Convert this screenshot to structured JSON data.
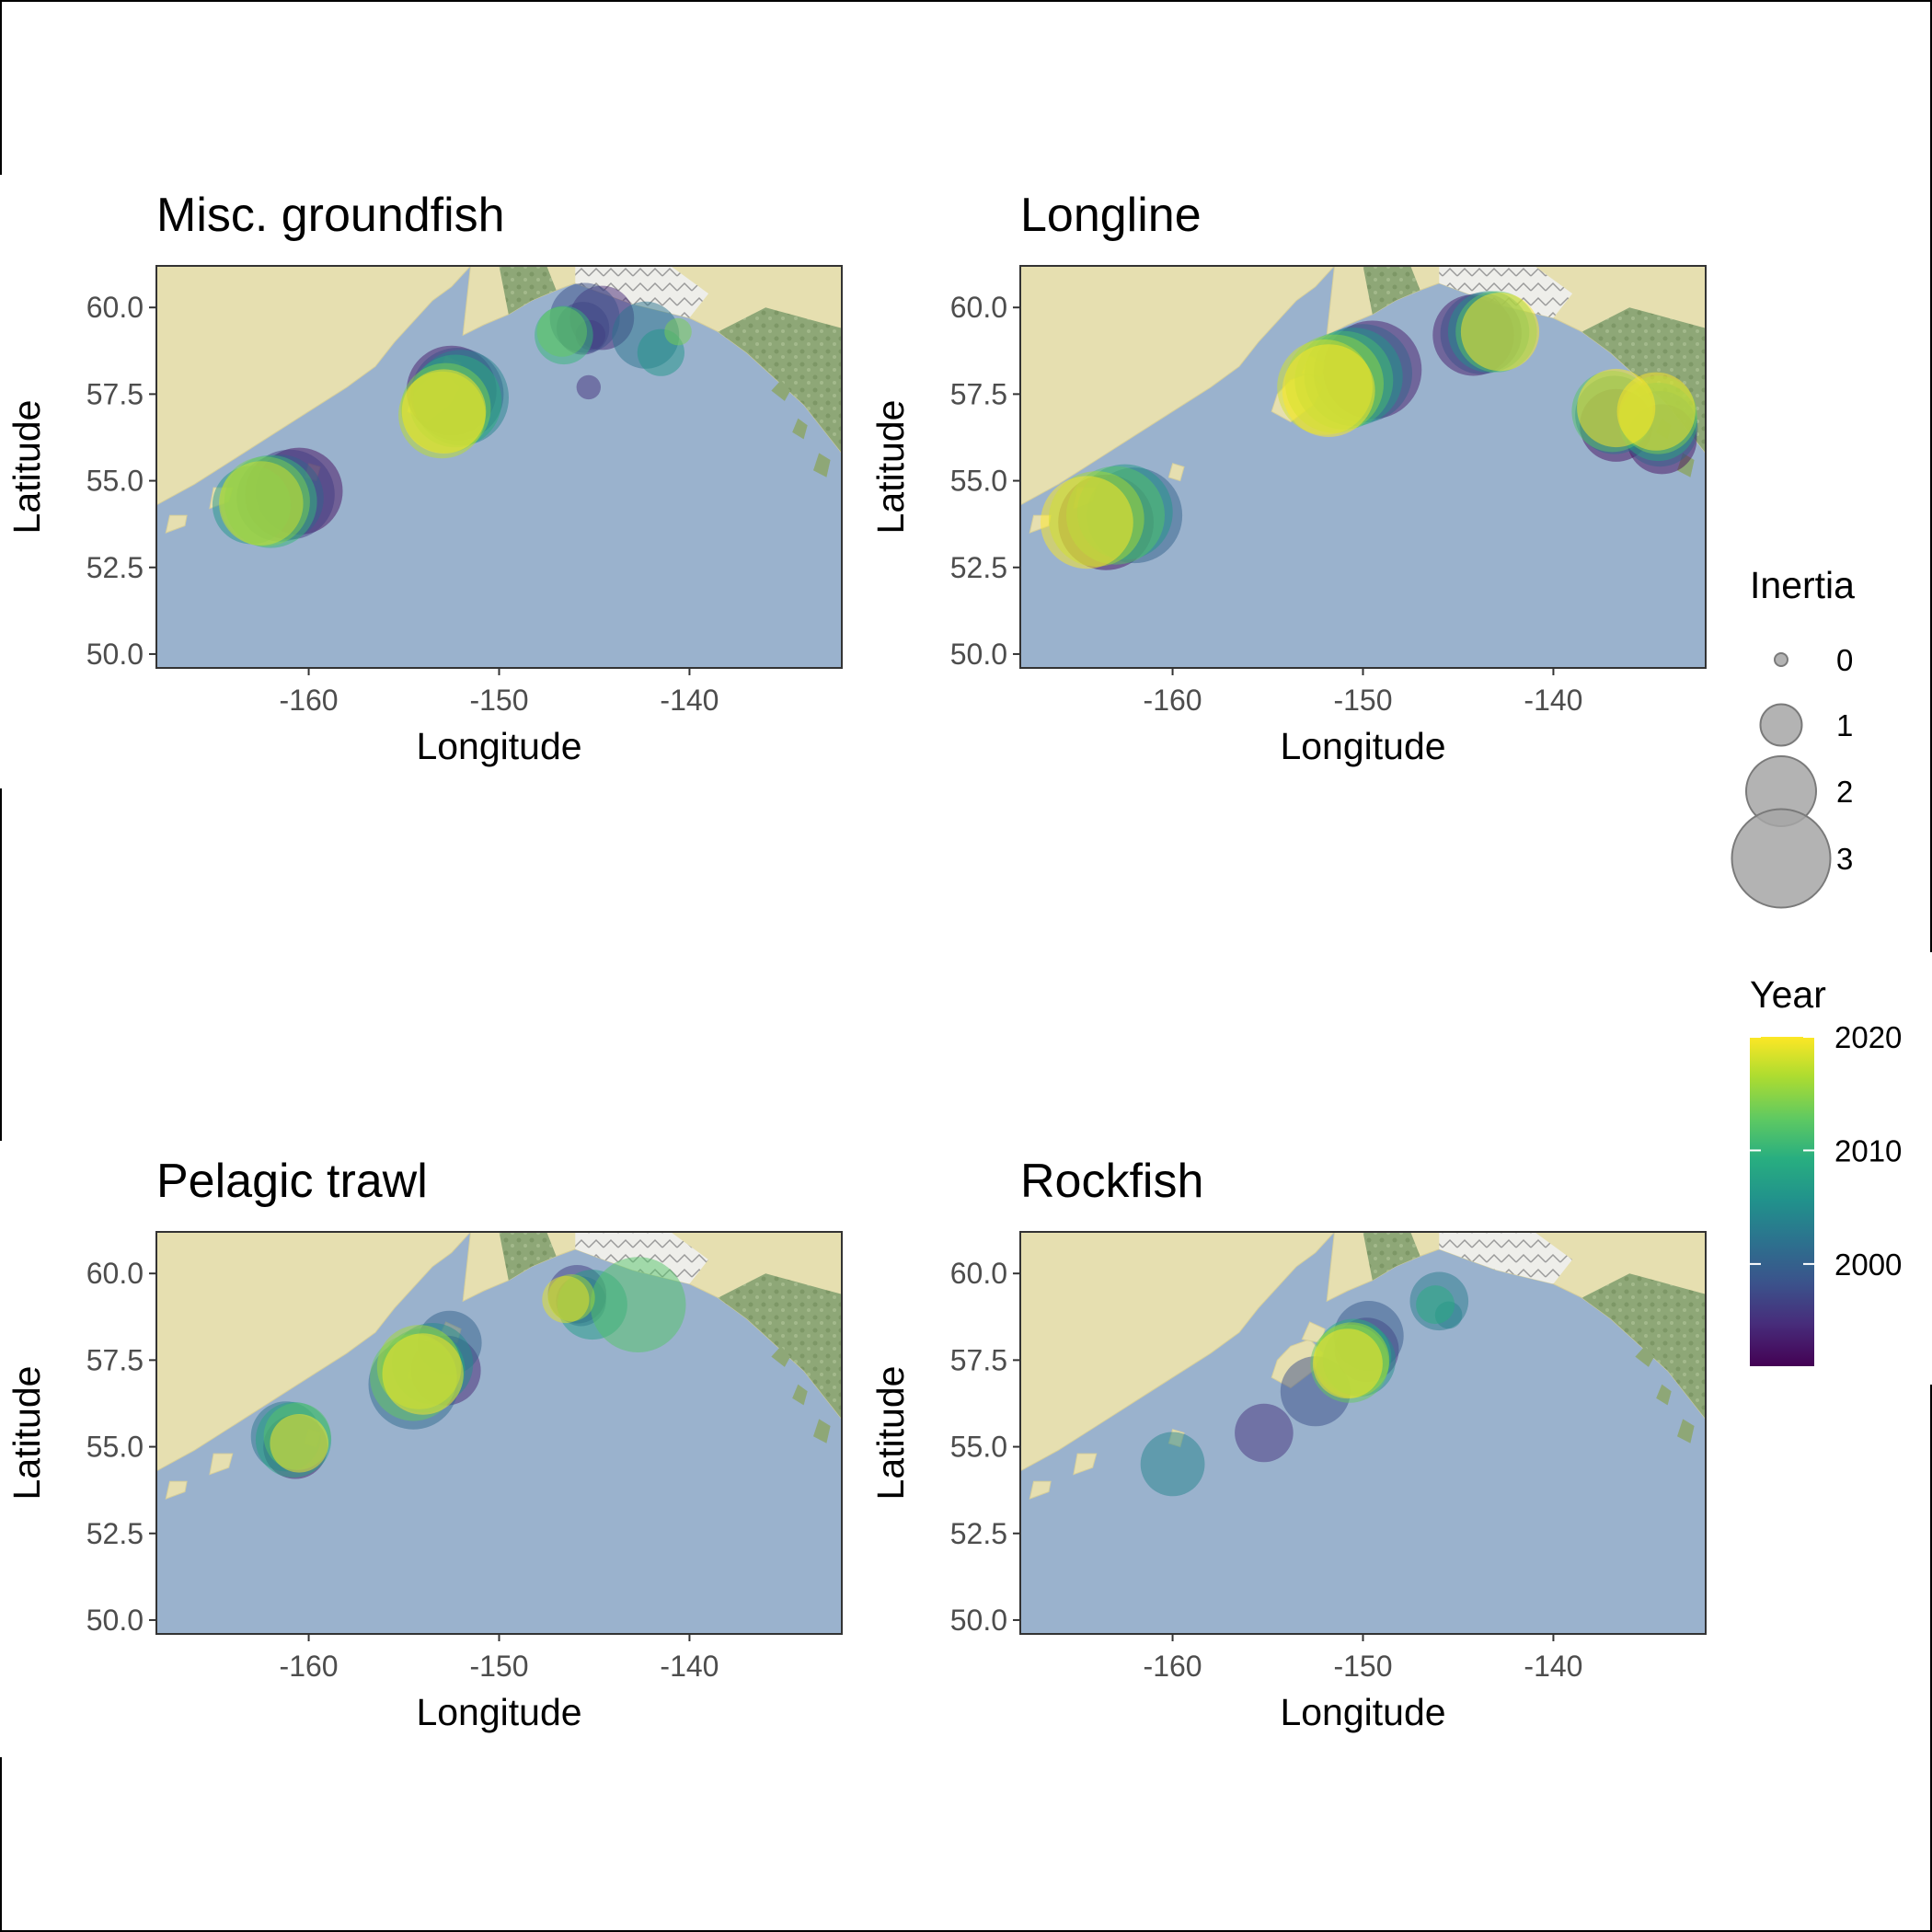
{
  "axes": {
    "xlabel": "Longitude",
    "ylabel": "Latitude",
    "xlim": [
      -168,
      -132
    ],
    "ylim": [
      49.6,
      61.2
    ],
    "xticks": [
      -160,
      -150,
      -140
    ],
    "xtick_labels": [
      "-160",
      "-150",
      "-140"
    ],
    "yticks": [
      50.0,
      52.5,
      55.0,
      57.5,
      60.0
    ],
    "ytick_labels": [
      "50.0",
      "52.5",
      "55.0",
      "57.5",
      "60.0"
    ]
  },
  "legend": {
    "size_title": "Inertia",
    "size_breaks": [
      0,
      1,
      2,
      3
    ],
    "size_labels": [
      "0",
      "1",
      "2",
      "3"
    ],
    "color_title": "Year",
    "color_breaks": [
      2000,
      2010,
      2020
    ],
    "color_labels": [
      "2000",
      "2010",
      "2020"
    ],
    "color_range": [
      1991,
      2020
    ],
    "placement": "right"
  },
  "colors": {
    "ocean": "#9ab2cd",
    "land": "#e6dfb0",
    "forest": "#8ea777",
    "ice": "#f2f2f0",
    "viridis_low": "#440154",
    "viridis_high": "#fde725"
  },
  "chart_data": [
    {
      "type": "scatter",
      "title": "Misc. groundfish",
      "points": [
        {
          "x": -160.5,
          "y": 54.7,
          "year": 1992,
          "inertia": 2.6
        },
        {
          "x": -161.0,
          "y": 54.6,
          "year": 1996,
          "inertia": 2.7
        },
        {
          "x": -161.5,
          "y": 54.5,
          "year": 2000,
          "inertia": 2.6
        },
        {
          "x": -163.0,
          "y": 54.3,
          "year": 2006,
          "inertia": 2.3
        },
        {
          "x": -162.0,
          "y": 54.4,
          "year": 2010,
          "inertia": 2.8
        },
        {
          "x": -162.3,
          "y": 54.4,
          "year": 2014,
          "inertia": 2.7
        },
        {
          "x": -162.5,
          "y": 54.35,
          "year": 2018,
          "inertia": 2.5
        },
        {
          "x": -152.5,
          "y": 57.6,
          "year": 1993,
          "inertia": 2.7
        },
        {
          "x": -152.2,
          "y": 57.5,
          "year": 1998,
          "inertia": 2.8
        },
        {
          "x": -152.0,
          "y": 57.4,
          "year": 2004,
          "inertia": 2.9
        },
        {
          "x": -152.3,
          "y": 57.3,
          "year": 2009,
          "inertia": 2.8
        },
        {
          "x": -152.8,
          "y": 57.1,
          "year": 2014,
          "inertia": 2.7
        },
        {
          "x": -153.0,
          "y": 56.9,
          "year": 2017,
          "inertia": 2.6
        },
        {
          "x": -152.9,
          "y": 57.0,
          "year": 2020,
          "inertia": 2.5
        },
        {
          "x": -145.5,
          "y": 59.7,
          "year": 1998,
          "inertia": 2.0
        },
        {
          "x": -144.6,
          "y": 59.7,
          "year": 1994,
          "inertia": 1.8
        },
        {
          "x": -145.6,
          "y": 59.4,
          "year": 1996,
          "inertia": 1.4
        },
        {
          "x": -145.2,
          "y": 59.2,
          "year": 1993,
          "inertia": 0.6
        },
        {
          "x": -146.7,
          "y": 59.3,
          "year": 2013,
          "inertia": 1.3
        },
        {
          "x": -146.6,
          "y": 59.2,
          "year": 2010,
          "inertia": 1.6
        },
        {
          "x": -142.3,
          "y": 59.2,
          "year": 2002,
          "inertia": 1.9
        },
        {
          "x": -141.5,
          "y": 58.7,
          "year": 2006,
          "inertia": 1.2
        },
        {
          "x": -140.6,
          "y": 59.3,
          "year": 2014,
          "inertia": 0.5
        },
        {
          "x": -145.3,
          "y": 57.7,
          "year": 1995,
          "inertia": 0.4
        }
      ]
    },
    {
      "type": "scatter",
      "title": "Longline",
      "points": [
        {
          "x": -163.5,
          "y": 53.8,
          "year": 1992,
          "inertia": 2.9
        },
        {
          "x": -162.0,
          "y": 54.0,
          "year": 2000,
          "inertia": 2.9
        },
        {
          "x": -162.5,
          "y": 54.1,
          "year": 2006,
          "inertia": 2.9
        },
        {
          "x": -163.0,
          "y": 54.0,
          "year": 2012,
          "inertia": 3.0
        },
        {
          "x": -164.0,
          "y": 53.9,
          "year": 2016,
          "inertia": 2.9
        },
        {
          "x": -164.5,
          "y": 53.8,
          "year": 2020,
          "inertia": 2.8
        },
        {
          "x": -149.5,
          "y": 58.2,
          "year": 1993,
          "inertia": 3.0
        },
        {
          "x": -150.0,
          "y": 58.1,
          "year": 2000,
          "inertia": 3.0
        },
        {
          "x": -150.5,
          "y": 58.0,
          "year": 2006,
          "inertia": 3.0
        },
        {
          "x": -151.0,
          "y": 57.9,
          "year": 2011,
          "inertia": 3.0
        },
        {
          "x": -151.5,
          "y": 57.8,
          "year": 2015,
          "inertia": 3.0
        },
        {
          "x": -152.0,
          "y": 57.7,
          "year": 2018,
          "inertia": 2.9
        },
        {
          "x": -151.8,
          "y": 57.6,
          "year": 2020,
          "inertia": 2.8
        },
        {
          "x": -144.2,
          "y": 59.2,
          "year": 1993,
          "inertia": 2.4
        },
        {
          "x": -143.8,
          "y": 59.25,
          "year": 1998,
          "inertia": 2.4
        },
        {
          "x": -143.4,
          "y": 59.3,
          "year": 2005,
          "inertia": 2.4
        },
        {
          "x": -143.0,
          "y": 59.3,
          "year": 2012,
          "inertia": 2.4
        },
        {
          "x": -142.8,
          "y": 59.3,
          "year": 2020,
          "inertia": 2.3
        },
        {
          "x": -136.7,
          "y": 56.6,
          "year": 1992,
          "inertia": 2.1
        },
        {
          "x": -136.8,
          "y": 56.9,
          "year": 2002,
          "inertia": 2.3
        },
        {
          "x": -136.9,
          "y": 57.0,
          "year": 2012,
          "inertia": 2.4
        },
        {
          "x": -136.7,
          "y": 57.1,
          "year": 2020,
          "inertia": 2.3
        },
        {
          "x": -134.3,
          "y": 56.2,
          "year": 1992,
          "inertia": 2.0
        },
        {
          "x": -134.4,
          "y": 56.5,
          "year": 2000,
          "inertia": 2.2
        },
        {
          "x": -134.5,
          "y": 56.7,
          "year": 2008,
          "inertia": 2.3
        },
        {
          "x": -134.5,
          "y": 56.9,
          "year": 2014,
          "inertia": 2.3
        },
        {
          "x": -134.6,
          "y": 57.0,
          "year": 2020,
          "inertia": 2.3
        }
      ]
    },
    {
      "type": "scatter",
      "title": "Pelagic trawl",
      "points": [
        {
          "x": -160.7,
          "y": 55.0,
          "year": 1993,
          "inertia": 1.8
        },
        {
          "x": -161.2,
          "y": 55.3,
          "year": 2002,
          "inertia": 2.0
        },
        {
          "x": -160.8,
          "y": 55.2,
          "year": 2008,
          "inertia": 2.2
        },
        {
          "x": -160.6,
          "y": 55.3,
          "year": 2012,
          "inertia": 1.9
        },
        {
          "x": -160.5,
          "y": 55.1,
          "year": 2020,
          "inertia": 1.6
        },
        {
          "x": -152.8,
          "y": 57.2,
          "year": 1994,
          "inertia": 2.0
        },
        {
          "x": -152.6,
          "y": 58.0,
          "year": 2000,
          "inertia": 1.8
        },
        {
          "x": -154.5,
          "y": 56.8,
          "year": 2001,
          "inertia": 2.7
        },
        {
          "x": -153.5,
          "y": 57.4,
          "year": 2005,
          "inertia": 2.4
        },
        {
          "x": -154.0,
          "y": 57.2,
          "year": 2009,
          "inertia": 2.5
        },
        {
          "x": -154.5,
          "y": 57.0,
          "year": 2013,
          "inertia": 2.6
        },
        {
          "x": -154.2,
          "y": 57.3,
          "year": 2016,
          "inertia": 2.5
        },
        {
          "x": -154.0,
          "y": 57.1,
          "year": 2020,
          "inertia": 2.4
        },
        {
          "x": -145.9,
          "y": 59.4,
          "year": 1996,
          "inertia": 1.6
        },
        {
          "x": -145.7,
          "y": 59.2,
          "year": 1999,
          "inertia": 1.3
        },
        {
          "x": -145.1,
          "y": 59.1,
          "year": 2007,
          "inertia": 2.0
        },
        {
          "x": -142.7,
          "y": 59.1,
          "year": 2012,
          "inertia": 2.9
        },
        {
          "x": -146.2,
          "y": 59.3,
          "year": 2016,
          "inertia": 1.2
        },
        {
          "x": -146.5,
          "y": 59.25,
          "year": 2019,
          "inertia": 1.2
        }
      ]
    },
    {
      "type": "scatter",
      "title": "Rockfish",
      "points": [
        {
          "x": -160.0,
          "y": 54.5,
          "year": 2004,
          "inertia": 1.8
        },
        {
          "x": -155.2,
          "y": 55.4,
          "year": 1995,
          "inertia": 1.6
        },
        {
          "x": -152.5,
          "y": 56.6,
          "year": 1998,
          "inertia": 2.0
        },
        {
          "x": -149.7,
          "y": 58.2,
          "year": 1999,
          "inertia": 2.0
        },
        {
          "x": -149.8,
          "y": 57.8,
          "year": 1995,
          "inertia": 1.8
        },
        {
          "x": -150.2,
          "y": 57.5,
          "year": 2005,
          "inertia": 2.1
        },
        {
          "x": -150.5,
          "y": 57.6,
          "year": 2009,
          "inertia": 2.2
        },
        {
          "x": -150.7,
          "y": 57.4,
          "year": 2013,
          "inertia": 2.3
        },
        {
          "x": -150.6,
          "y": 57.5,
          "year": 2016,
          "inertia": 2.2
        },
        {
          "x": -150.8,
          "y": 57.4,
          "year": 2020,
          "inertia": 2.0
        },
        {
          "x": -146.0,
          "y": 59.2,
          "year": 2003,
          "inertia": 1.6
        },
        {
          "x": -146.2,
          "y": 59.1,
          "year": 2009,
          "inertia": 0.9
        },
        {
          "x": -145.5,
          "y": 58.8,
          "year": 2004,
          "inertia": 0.5
        }
      ]
    }
  ]
}
